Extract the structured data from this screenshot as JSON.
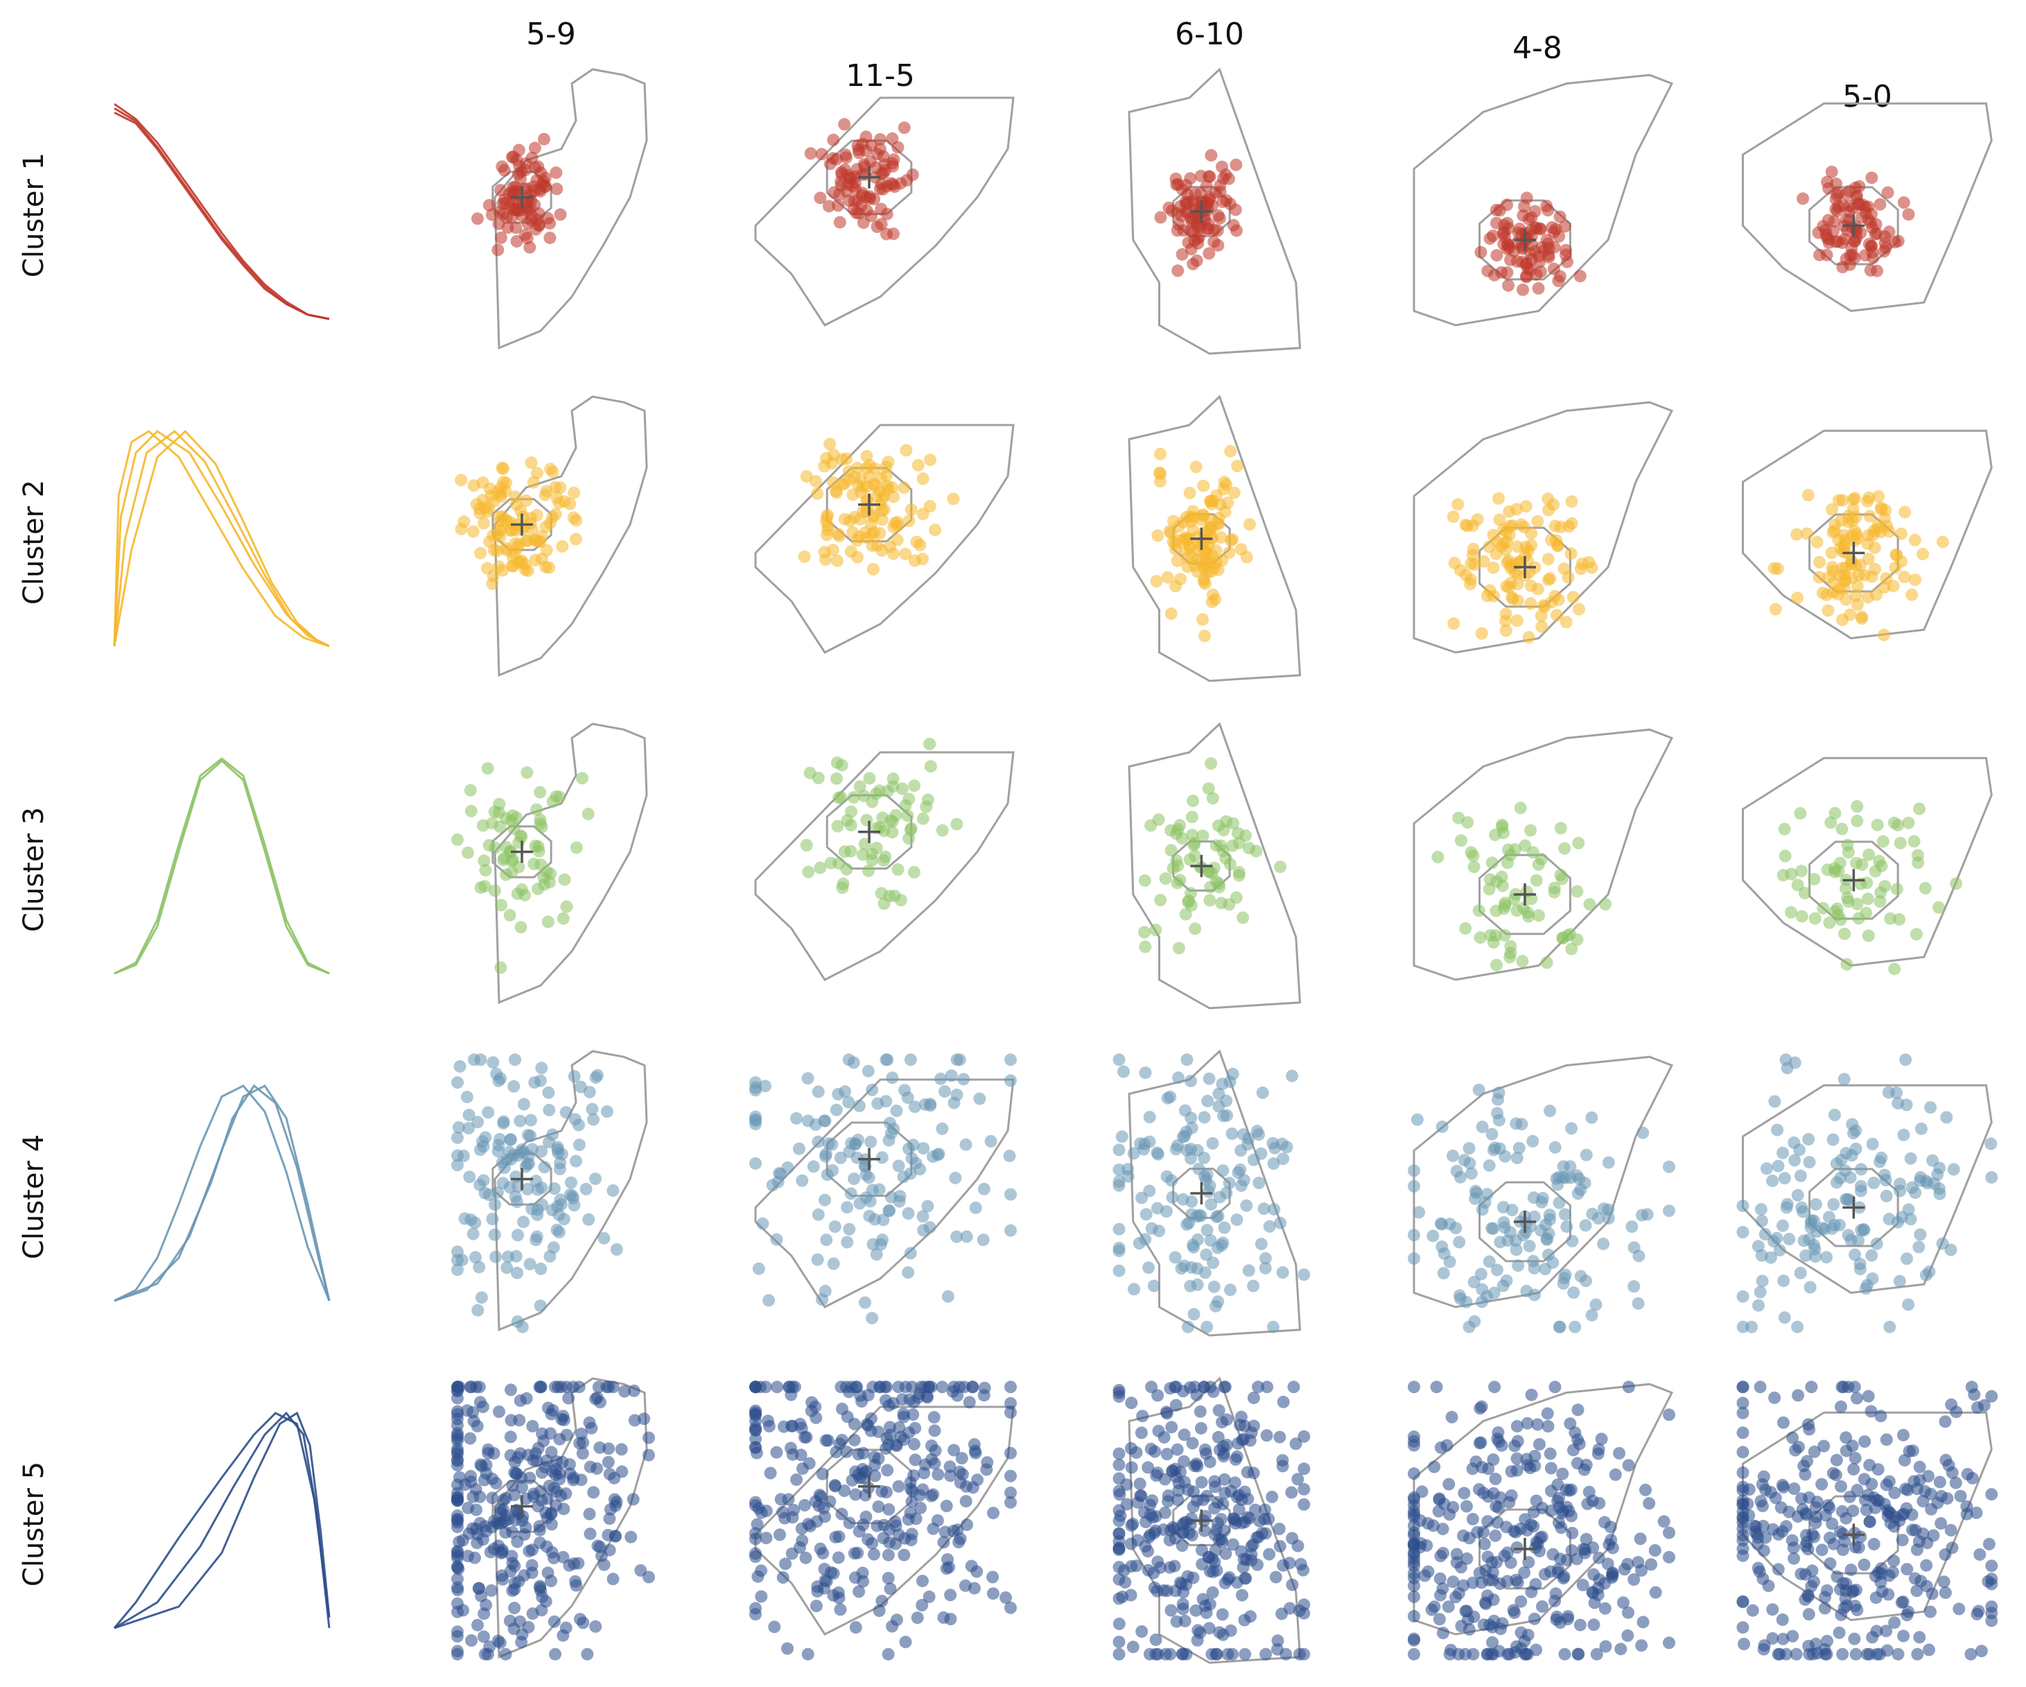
{
  "chart_data": {
    "type": "scatter",
    "description_of_layout": "grid",
    "row_labels": [
      "Cluster 1",
      "Cluster 2",
      "Cluster 3",
      "Cluster 4",
      "Cluster 5"
    ],
    "column_titles": [
      "5-9",
      "11-5",
      "6-10",
      "4-8",
      "5-0"
    ],
    "colors": [
      "#c0392b",
      "#f5b82e",
      "#8cc265",
      "#6a97b4",
      "#2e4f8c"
    ],
    "outline_color": "#a0a0a0",
    "nucleus_color": "#a0a0a0",
    "center_marker_color": "#555555",
    "profile_type": "line",
    "profiles": [
      {
        "name": "",
        "curves": [
          [
            [
              0,
              1.0
            ],
            [
              0.1,
              0.93
            ],
            [
              0.2,
              0.82
            ],
            [
              0.3,
              0.68
            ],
            [
              0.4,
              0.54
            ],
            [
              0.5,
              0.4
            ],
            [
              0.6,
              0.27
            ],
            [
              0.7,
              0.16
            ],
            [
              0.8,
              0.08
            ],
            [
              0.9,
              0.02
            ],
            [
              1.0,
              0.0
            ]
          ],
          [
            [
              0,
              0.98
            ],
            [
              0.1,
              0.92
            ],
            [
              0.2,
              0.8
            ],
            [
              0.3,
              0.66
            ],
            [
              0.4,
              0.52
            ],
            [
              0.5,
              0.38
            ],
            [
              0.6,
              0.26
            ],
            [
              0.7,
              0.15
            ],
            [
              0.8,
              0.07
            ],
            [
              0.9,
              0.02
            ],
            [
              1.0,
              0.0
            ]
          ],
          [
            [
              0,
              0.96
            ],
            [
              0.1,
              0.91
            ],
            [
              0.2,
              0.79
            ],
            [
              0.3,
              0.65
            ],
            [
              0.4,
              0.51
            ],
            [
              0.5,
              0.37
            ],
            [
              0.6,
              0.25
            ],
            [
              0.7,
              0.14
            ],
            [
              0.8,
              0.07
            ],
            [
              0.9,
              0.02
            ],
            [
              1.0,
              0.0
            ]
          ]
        ]
      },
      {
        "name": "",
        "curves": [
          [
            [
              0,
              0.0
            ],
            [
              0.03,
              0.6
            ],
            [
              0.1,
              0.9
            ],
            [
              0.2,
              1.0
            ],
            [
              0.35,
              0.9
            ],
            [
              0.5,
              0.65
            ],
            [
              0.65,
              0.38
            ],
            [
              0.8,
              0.15
            ],
            [
              0.9,
              0.05
            ],
            [
              1.0,
              0.0
            ]
          ],
          [
            [
              0,
              0.0
            ],
            [
              0.05,
              0.5
            ],
            [
              0.15,
              0.9
            ],
            [
              0.28,
              1.0
            ],
            [
              0.42,
              0.86
            ],
            [
              0.56,
              0.6
            ],
            [
              0.7,
              0.33
            ],
            [
              0.82,
              0.13
            ],
            [
              0.92,
              0.04
            ],
            [
              1.0,
              0.0
            ]
          ],
          [
            [
              0,
              0.0
            ],
            [
              0.08,
              0.45
            ],
            [
              0.2,
              0.88
            ],
            [
              0.33,
              1.0
            ],
            [
              0.47,
              0.85
            ],
            [
              0.6,
              0.58
            ],
            [
              0.73,
              0.3
            ],
            [
              0.85,
              0.11
            ],
            [
              0.94,
              0.03
            ],
            [
              1.0,
              0.0
            ]
          ],
          [
            [
              0,
              0.0
            ],
            [
              0.02,
              0.7
            ],
            [
              0.08,
              0.95
            ],
            [
              0.16,
              1.0
            ],
            [
              0.3,
              0.88
            ],
            [
              0.45,
              0.62
            ],
            [
              0.6,
              0.36
            ],
            [
              0.75,
              0.14
            ],
            [
              0.88,
              0.04
            ],
            [
              1.0,
              0.0
            ]
          ]
        ]
      },
      {
        "name": "",
        "curves": [
          [
            [
              0,
              0.0
            ],
            [
              0.1,
              0.05
            ],
            [
              0.2,
              0.25
            ],
            [
              0.3,
              0.6
            ],
            [
              0.4,
              0.92
            ],
            [
              0.5,
              1.0
            ],
            [
              0.6,
              0.92
            ],
            [
              0.7,
              0.6
            ],
            [
              0.8,
              0.25
            ],
            [
              0.9,
              0.05
            ],
            [
              1.0,
              0.0
            ]
          ],
          [
            [
              0,
              0.0
            ],
            [
              0.1,
              0.04
            ],
            [
              0.2,
              0.22
            ],
            [
              0.3,
              0.57
            ],
            [
              0.4,
              0.9
            ],
            [
              0.5,
              0.99
            ],
            [
              0.6,
              0.9
            ],
            [
              0.7,
              0.57
            ],
            [
              0.8,
              0.22
            ],
            [
              0.9,
              0.04
            ],
            [
              1.0,
              0.0
            ]
          ]
        ]
      },
      {
        "name": "",
        "curves": [
          [
            [
              0,
              0.0
            ],
            [
              0.1,
              0.05
            ],
            [
              0.2,
              0.2
            ],
            [
              0.3,
              0.45
            ],
            [
              0.4,
              0.72
            ],
            [
              0.5,
              0.95
            ],
            [
              0.6,
              1.0
            ],
            [
              0.7,
              0.88
            ],
            [
              0.8,
              0.6
            ],
            [
              0.9,
              0.25
            ],
            [
              1.0,
              0.0
            ]
          ],
          [
            [
              0,
              0.0
            ],
            [
              0.15,
              0.05
            ],
            [
              0.3,
              0.2
            ],
            [
              0.45,
              0.55
            ],
            [
              0.55,
              0.85
            ],
            [
              0.65,
              1.0
            ],
            [
              0.75,
              0.92
            ],
            [
              0.85,
              0.62
            ],
            [
              0.95,
              0.2
            ],
            [
              1.0,
              0.0
            ]
          ],
          [
            [
              0,
              0.0
            ],
            [
              0.2,
              0.08
            ],
            [
              0.35,
              0.3
            ],
            [
              0.5,
              0.7
            ],
            [
              0.6,
              0.95
            ],
            [
              0.7,
              1.0
            ],
            [
              0.8,
              0.85
            ],
            [
              0.9,
              0.45
            ],
            [
              1.0,
              0.0
            ]
          ]
        ]
      },
      {
        "name": "",
        "curves": [
          [
            [
              0,
              0.0
            ],
            [
              0.2,
              0.12
            ],
            [
              0.4,
              0.38
            ],
            [
              0.55,
              0.65
            ],
            [
              0.7,
              0.9
            ],
            [
              0.8,
              1.0
            ],
            [
              0.88,
              0.9
            ],
            [
              0.94,
              0.55
            ],
            [
              1.0,
              0.0
            ]
          ],
          [
            [
              0,
              0.0
            ],
            [
              0.3,
              0.1
            ],
            [
              0.5,
              0.35
            ],
            [
              0.65,
              0.7
            ],
            [
              0.77,
              0.95
            ],
            [
              0.85,
              1.0
            ],
            [
              0.91,
              0.85
            ],
            [
              0.96,
              0.45
            ],
            [
              1.0,
              0.05
            ]
          ],
          [
            [
              0,
              0.0
            ],
            [
              0.1,
              0.12
            ],
            [
              0.3,
              0.42
            ],
            [
              0.5,
              0.7
            ],
            [
              0.65,
              0.9
            ],
            [
              0.75,
              1.0
            ],
            [
              0.85,
              0.95
            ],
            [
              0.93,
              0.6
            ],
            [
              1.0,
              0.05
            ]
          ]
        ]
      }
    ]
  }
}
